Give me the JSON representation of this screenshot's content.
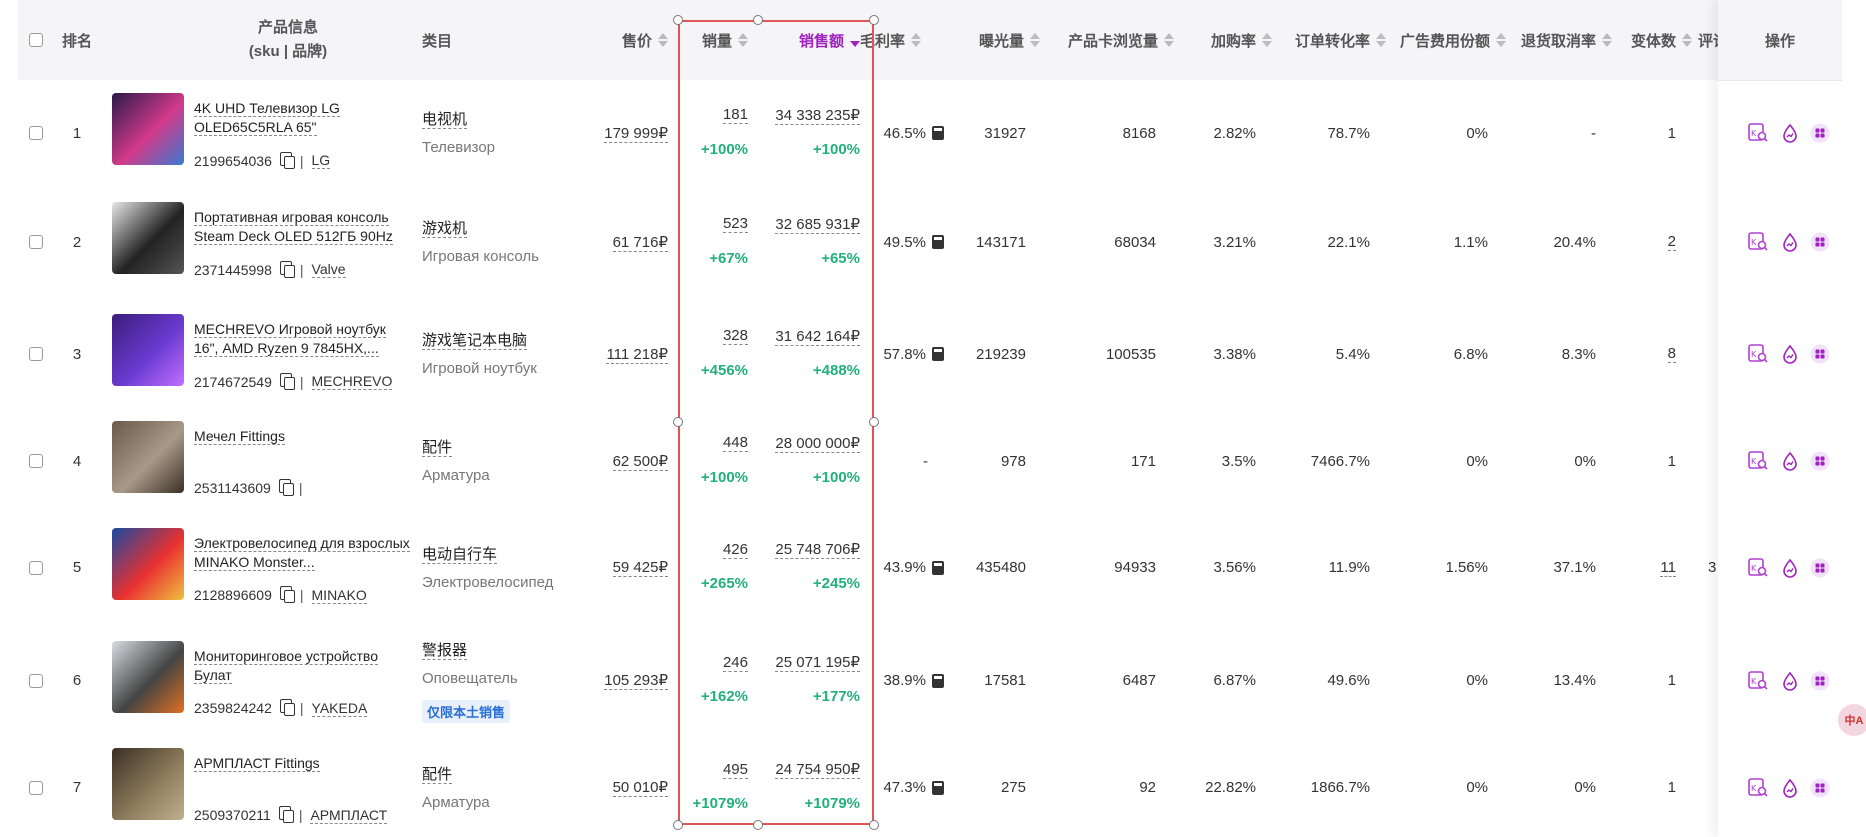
{
  "header": {
    "rank": "排名",
    "product_info": "产品信息",
    "product_info_sub": "(sku | 品牌)",
    "category": "类目",
    "price": "售价",
    "sales_qty": "销量",
    "sales_amount": "销售额",
    "gross_margin": "毛利率",
    "impressions": "曝光量",
    "card_views": "产品卡浏览量",
    "add_rate": "加购率",
    "order_conv": "订单转化率",
    "ad_share": "广告费用份额",
    "return_rate": "退货取消率",
    "variants": "变体数",
    "reviews": "评论数",
    "ops": "操作"
  },
  "rows": [
    {
      "rank": "1",
      "name": "4K UHD Телевизор LG OLED65C5RLA 65\"",
      "sku": "2199654036",
      "brand": "LG",
      "cat1": "电视机",
      "cat2": "Телевизор",
      "tag": "",
      "price": "179 999₽",
      "qty": "181",
      "qty_pct": "+100%",
      "amt": "34 338 235₽",
      "amt_pct": "+100%",
      "margin": "46.5%",
      "impr": "31927",
      "views": "8168",
      "add": "2.82%",
      "conv": "78.7%",
      "ad": "0%",
      "ret": "-",
      "var": "1",
      "var_link": false,
      "rev": ""
    },
    {
      "rank": "2",
      "name": "Портативная игровая консоль Steam Deck OLED 512ГБ 90Hz",
      "sku": "2371445998",
      "brand": "Valve",
      "cat1": "游戏机",
      "cat2": "Игровая консоль",
      "tag": "",
      "price": "61 716₽",
      "qty": "523",
      "qty_pct": "+67%",
      "amt": "32 685 931₽",
      "amt_pct": "+65%",
      "margin": "49.5%",
      "impr": "143171",
      "views": "68034",
      "add": "3.21%",
      "conv": "22.1%",
      "ad": "1.1%",
      "ret": "20.4%",
      "var": "2",
      "var_link": true,
      "rev": ""
    },
    {
      "rank": "3",
      "name": "MECHREVO Игровой ноутбук 16\", AMD Ryzen 9 7845HX,...",
      "sku": "2174672549",
      "brand": "MECHREVO",
      "cat1": "游戏笔记本电脑",
      "cat2": "Игровой ноутбук",
      "tag": "",
      "price": "111 218₽",
      "qty": "328",
      "qty_pct": "+456%",
      "amt": "31 642 164₽",
      "amt_pct": "+488%",
      "margin": "57.8%",
      "impr": "219239",
      "views": "100535",
      "add": "3.38%",
      "conv": "5.4%",
      "ad": "6.8%",
      "ret": "8.3%",
      "var": "8",
      "var_link": true,
      "rev": ""
    },
    {
      "rank": "4",
      "name": "Мечел Fittings",
      "sku": "2531143609",
      "brand": "",
      "cat1": "配件",
      "cat2": "Арматура",
      "tag": "",
      "price": "62 500₽",
      "qty": "448",
      "qty_pct": "+100%",
      "amt": "28 000 000₽",
      "amt_pct": "+100%",
      "margin": "-",
      "impr": "978",
      "views": "171",
      "add": "3.5%",
      "conv": "7466.7%",
      "ad": "0%",
      "ret": "0%",
      "var": "1",
      "var_link": false,
      "rev": ""
    },
    {
      "rank": "5",
      "name": "Электровелосипед для взрослых MINAKO Monster...",
      "sku": "2128896609",
      "brand": "MINAKO",
      "cat1": "电动自行车",
      "cat2": "Электровелосипед",
      "tag": "",
      "price": "59 425₽",
      "qty": "426",
      "qty_pct": "+265%",
      "amt": "25 748 706₽",
      "amt_pct": "+245%",
      "margin": "43.9%",
      "impr": "435480",
      "views": "94933",
      "add": "3.56%",
      "conv": "11.9%",
      "ad": "1.56%",
      "ret": "37.1%",
      "var": "11",
      "var_link": true,
      "rev": "3"
    },
    {
      "rank": "6",
      "name": "Мониторинговое устройство Булат",
      "sku": "2359824242",
      "brand": "YAKEDA",
      "cat1": "警报器",
      "cat2": "Оповещатель",
      "tag": "仅限本土销售",
      "price": "105 293₽",
      "qty": "246",
      "qty_pct": "+162%",
      "amt": "25 071 195₽",
      "amt_pct": "+177%",
      "margin": "38.9%",
      "impr": "17581",
      "views": "6487",
      "add": "6.87%",
      "conv": "49.6%",
      "ad": "0%",
      "ret": "13.4%",
      "var": "1",
      "var_link": false,
      "rev": ""
    },
    {
      "rank": "7",
      "name": "АРМПЛАСТ Fittings",
      "sku": "2509370211",
      "brand": "АРМПЛАСТ",
      "cat1": "配件",
      "cat2": "Арматура",
      "tag": "",
      "price": "50 010₽",
      "qty": "495",
      "qty_pct": "+1079%",
      "amt": "24 754 950₽",
      "amt_pct": "+1079%",
      "margin": "47.3%",
      "impr": "275",
      "views": "92",
      "add": "22.82%",
      "conv": "1866.7%",
      "ad": "0%",
      "ret": "0%",
      "var": "1",
      "var_link": false,
      "rev": ""
    }
  ],
  "translate_fab": "中A",
  "colors": {
    "accent": "#a020c0",
    "positive": "#22b07d",
    "selection": "#e05555",
    "tag_blue": "#2a6fd6"
  },
  "icons": {
    "op1": "keyword-search-icon",
    "op2": "traffic-drop-icon",
    "op3": "grid-apps-icon"
  }
}
